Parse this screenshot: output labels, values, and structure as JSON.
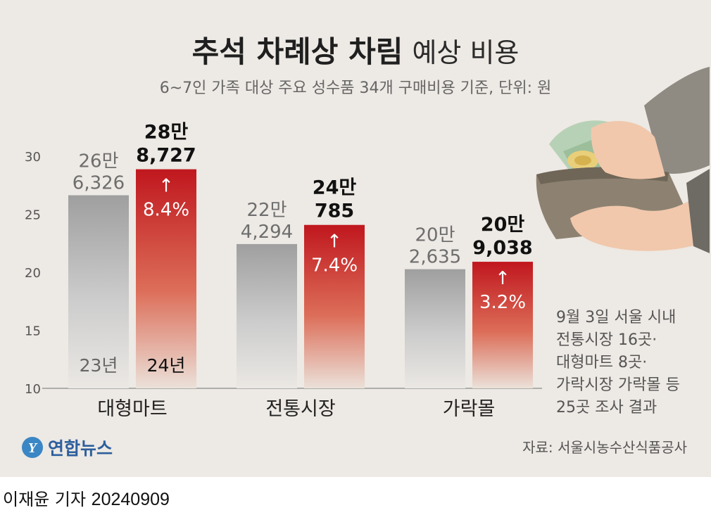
{
  "title": {
    "bold": "추석 차례상 차림",
    "light": "예상 비용"
  },
  "subtitle": "6~7인 가족 대상 주요 성수품 34개 구매비용 기준, 단위: 원",
  "chart_data": {
    "type": "bar",
    "categories": [
      "대형마트",
      "전통시장",
      "가락몰"
    ],
    "ylim": [
      10,
      30
    ],
    "yticks": [
      10,
      15,
      20,
      25,
      30
    ],
    "grid": false,
    "series": [
      {
        "name": "23년",
        "values": [
          26.6326,
          22.4294,
          20.2635
        ],
        "labels": [
          [
            "26만",
            "6,326"
          ],
          [
            "22만",
            "4,294"
          ],
          [
            "20만",
            "2,635"
          ]
        ],
        "color": "#a7a7a7"
      },
      {
        "name": "24년",
        "values": [
          28.8727,
          24.0785,
          20.9038
        ],
        "labels": [
          [
            "28만",
            "8,727"
          ],
          [
            "24만",
            "785"
          ],
          [
            "20만",
            "9,038"
          ]
        ],
        "change": [
          "8.4%",
          "7.4%",
          "3.2%"
        ],
        "color": "#c0171e"
      }
    ]
  },
  "arrow": "↑",
  "note": [
    "9월 3일 서울 시내",
    "전통시장 16곳·",
    "대형마트 8곳·",
    "가락시장 가락몰 등",
    "25곳 조사 결과"
  ],
  "source": "자료: 서울시농수산식품공사",
  "logo": "연합뉴스",
  "byline": {
    "name": "이재윤 기자",
    "date": "20240909"
  },
  "colors": {
    "background": "#ede9e4",
    "prev": "#a7a7a7",
    "current": "#c0171e"
  }
}
